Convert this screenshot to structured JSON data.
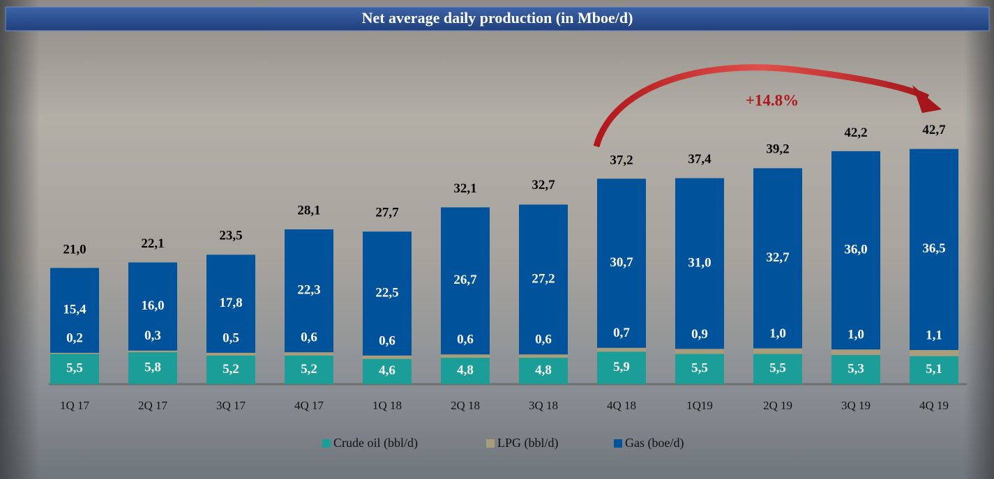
{
  "chart_data": {
    "type": "bar",
    "stacked": true,
    "title": "Net average daily production (in Mboe/d)",
    "annotation": "+14.8%",
    "categories": [
      "1Q 17",
      "2Q 17",
      "3Q 17",
      "4Q 17",
      "1Q 18",
      "2Q 18",
      "3Q 18",
      "4Q 18",
      "1Q19",
      "2Q 19",
      "3Q 19",
      "4Q 19"
    ],
    "series": [
      {
        "name": "Crude oil (bbl/d)",
        "color": "#1a9e97",
        "values": [
          5.5,
          5.8,
          5.2,
          5.2,
          4.6,
          4.8,
          4.8,
          5.9,
          5.5,
          5.5,
          5.3,
          5.1
        ],
        "value_labels": [
          "5,5",
          "5,8",
          "5,2",
          "5,2",
          "4,6",
          "4,8",
          "4,8",
          "5,9",
          "5,5",
          "5,5",
          "5,3",
          "5,1"
        ]
      },
      {
        "name": "LPG (bbl/d)",
        "color": "#a99d7c",
        "values": [
          0.2,
          0.3,
          0.5,
          0.6,
          0.6,
          0.6,
          0.6,
          0.7,
          0.9,
          1.0,
          1.0,
          1.1
        ],
        "value_labels": [
          "0,2",
          "0,3",
          "0,5",
          "0,6",
          "0,6",
          "0,6",
          "0,6",
          "0,7",
          "0,9",
          "1,0",
          "1,0",
          "1,1"
        ]
      },
      {
        "name": "Gas (boe/d)",
        "color": "#00529b",
        "values": [
          15.4,
          16.0,
          17.8,
          22.3,
          22.5,
          26.7,
          27.2,
          30.7,
          31.0,
          32.7,
          36.0,
          36.5
        ],
        "value_labels": [
          "15,4",
          "16,0",
          "17,8",
          "22,3",
          "22,5",
          "26,7",
          "27,2",
          "30,7",
          "31,0",
          "32,7",
          "36,0",
          "36,5"
        ]
      }
    ],
    "totals": [
      21.0,
      22.1,
      23.5,
      28.1,
      27.7,
      32.1,
      32.7,
      37.2,
      37.4,
      39.2,
      42.2,
      42.7
    ],
    "total_labels": [
      "21,0",
      "22,1",
      "23,5",
      "28,1",
      "27,7",
      "32,1",
      "32,7",
      "37,2",
      "37,4",
      "39,2",
      "42,2",
      "42,7"
    ]
  }
}
